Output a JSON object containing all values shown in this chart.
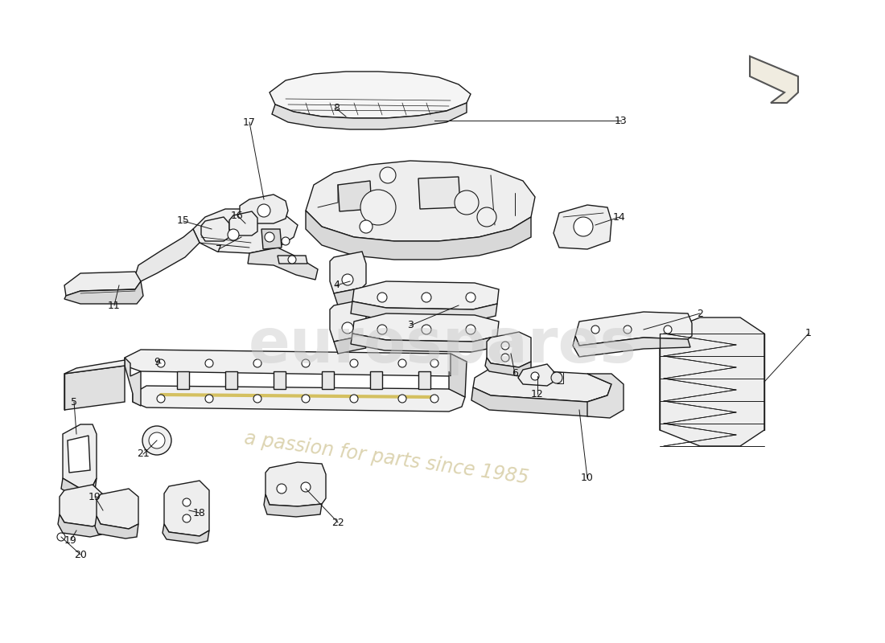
{
  "bg_color": "#ffffff",
  "line_color": "#1a1a1a",
  "part_fill": "#f0f0f0",
  "part_fill_side": "#d8d8d8",
  "part_edge": "#1a1a1a",
  "label_color": "#111111",
  "lw_main": 1.0,
  "lw_detail": 0.6,
  "watermark1": "eurospares",
  "watermark2": "a passion for parts since 1985",
  "wm1_color": "#cccccc",
  "wm2_color": "#c8bc90",
  "logo_bg": "#e8e0ce"
}
